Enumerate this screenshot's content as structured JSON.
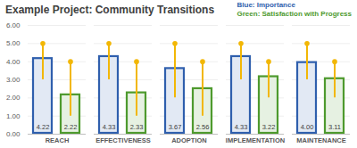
{
  "chart_data": {
    "type": "bar",
    "title": "Example Project: Community Transitions",
    "categories": [
      "REACH",
      "EFFECTIVENESS",
      "ADOPTION",
      "IMPLEMENTATION",
      "MAINTENANCE"
    ],
    "series": [
      {
        "name": "Blue: Importance",
        "color": "#2f5fad",
        "values": [
          4.22,
          4.33,
          3.67,
          4.33,
          4.0
        ],
        "value_labels": [
          "4.22",
          "4.33",
          "3.67",
          "4.33",
          "4.00"
        ],
        "error_low": [
          3.0,
          3.0,
          2.0,
          3.0,
          3.0
        ],
        "error_high": [
          5.0,
          5.0,
          5.0,
          5.0,
          5.0
        ]
      },
      {
        "name": "Green: Satisfaction with Progress",
        "color": "#4e9a2e",
        "values": [
          2.22,
          2.33,
          2.56,
          3.22,
          3.11
        ],
        "value_labels": [
          "2.22",
          "2.33",
          "2.56",
          "3.22",
          "3.11"
        ],
        "error_low": [
          1.0,
          1.0,
          1.0,
          2.0,
          2.0
        ],
        "error_high": [
          4.0,
          4.0,
          4.0,
          4.0,
          4.0
        ]
      }
    ],
    "ylim": [
      0,
      6
    ],
    "yticks": [
      {
        "value": 0,
        "label": "0.00"
      },
      {
        "value": 1,
        "label": "1.00"
      },
      {
        "value": 2,
        "label": "2.00"
      },
      {
        "value": 3,
        "label": "3.00"
      },
      {
        "value": 4,
        "label": "4.00"
      },
      {
        "value": 5,
        "label": "5.00"
      },
      {
        "value": 6,
        "label": "6.00"
      }
    ],
    "grid": true,
    "data_labels": true,
    "legend": "top-right"
  }
}
